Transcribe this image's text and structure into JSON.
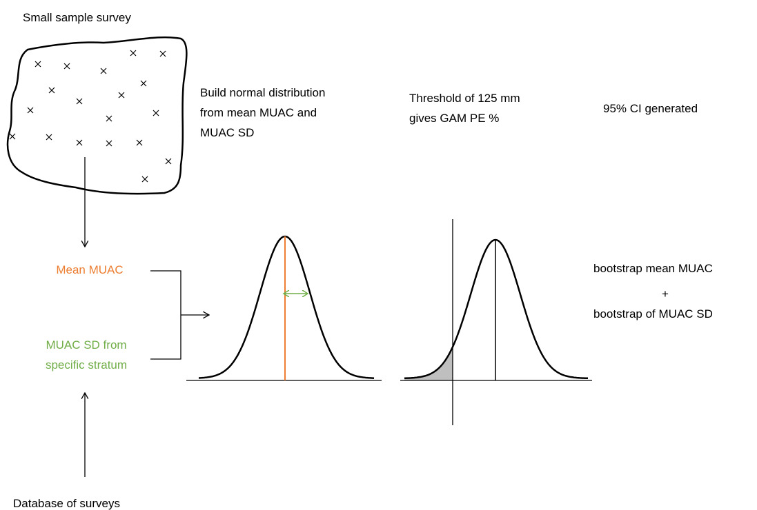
{
  "survey_label": "Small sample survey",
  "step_build": [
    "Build normal distribution",
    "from mean MUAC and",
    "MUAC SD"
  ],
  "step_threshold": [
    "Threshold of 125 mm",
    "gives GAM PE %"
  ],
  "step_ci": "95% CI generated",
  "mean_label": "Mean MUAC",
  "sd_label": [
    "MUAC SD from",
    "specific stratum"
  ],
  "bootstrap": [
    "bootstrap  mean MUAC",
    "+",
    "bootstrap of MUAC SD"
  ],
  "database_label": "Database of surveys"
}
